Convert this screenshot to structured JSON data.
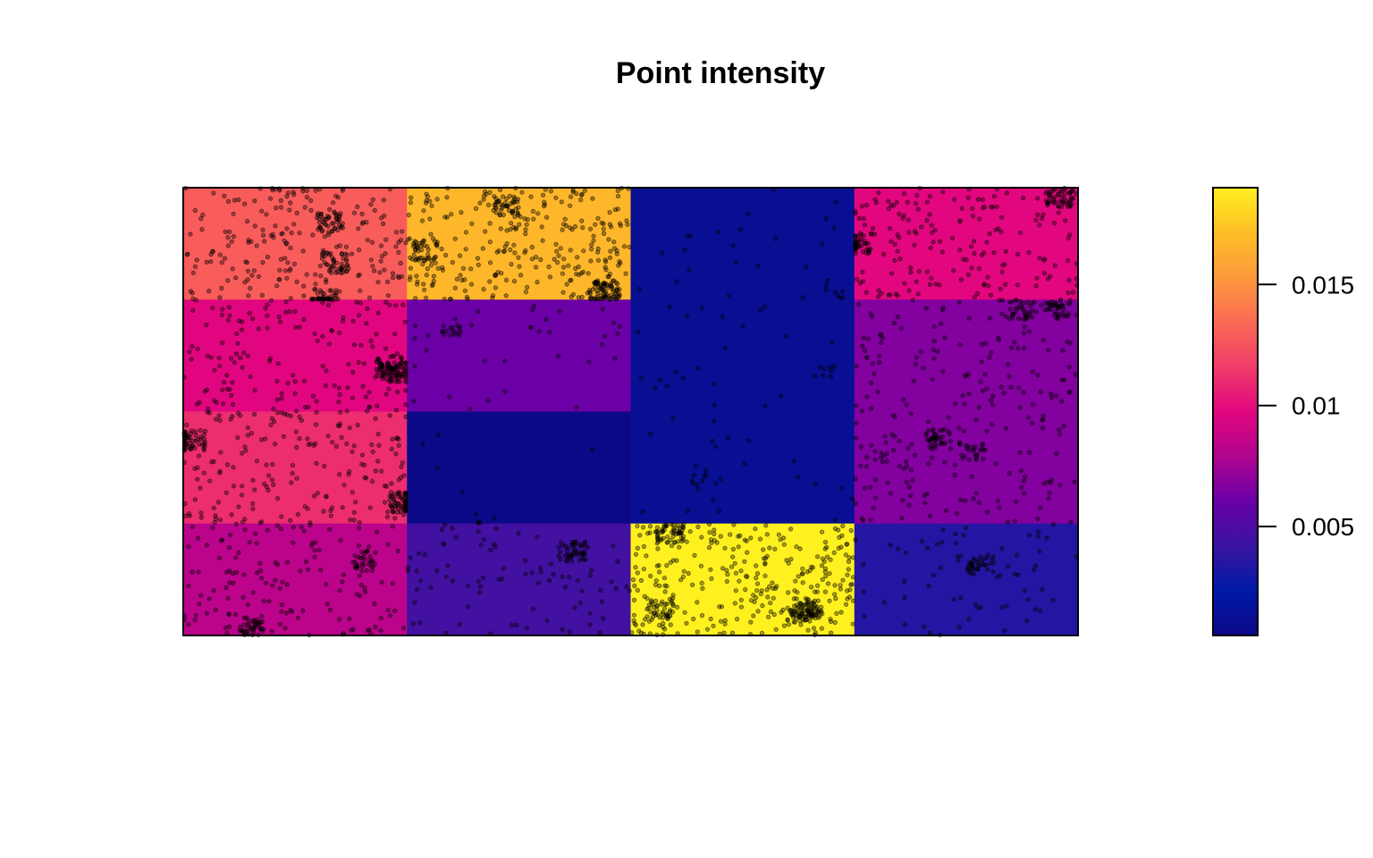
{
  "chart_data": {
    "type": "heatmap",
    "title": "Point intensity",
    "xlabel": "",
    "ylabel": "",
    "rows": 4,
    "cols": 4,
    "row_order": "top-to-bottom",
    "values": [
      [
        0.0129,
        0.0168,
        0.0012,
        0.0098
      ],
      [
        0.0097,
        0.0061,
        0.0012,
        0.0067
      ],
      [
        0.0111,
        0.0006,
        0.0012,
        0.0067
      ],
      [
        0.0083,
        0.0045,
        0.019,
        0.0035
      ]
    ],
    "points_overlay": {
      "shown": true,
      "color": "#000000",
      "cell_point_counts": [
        [
          330,
          420,
          30,
          260
        ],
        [
          250,
          50,
          30,
          190
        ],
        [
          290,
          10,
          30,
          180
        ],
        [
          210,
          130,
          480,
          100
        ]
      ]
    },
    "colorbar": {
      "placement": "right",
      "range": [
        0.0005,
        0.019
      ],
      "ticks": [
        {
          "value": 0.015,
          "label": "0.015"
        },
        {
          "value": 0.01,
          "label": "0.01"
        },
        {
          "value": 0.005,
          "label": "0.005"
        }
      ],
      "palette": [
        "#0d0887",
        "#001aa8",
        "#3a14a0",
        "#6a00a8",
        "#b0048e",
        "#e2067f",
        "#f03c6a",
        "#fb6a54",
        "#fd9a3c",
        "#febd26",
        "#fff01f"
      ]
    },
    "grid": false
  }
}
